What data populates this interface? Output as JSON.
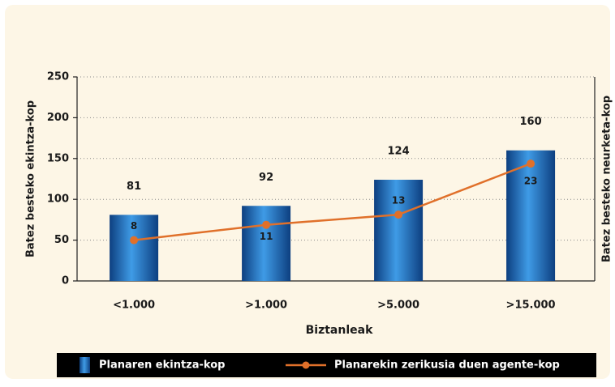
{
  "chart_data": {
    "type": "bar_line",
    "x_label": "Biztanleak",
    "y_label": "Batez besteko ekintza-kop",
    "y2_label": "Batez besteko neurketa-kop",
    "categories": [
      "<1.000",
      ">1.000",
      ">5.000",
      ">15.000"
    ],
    "series": [
      {
        "name": "Planaren ekintza-kop",
        "color": "#1f6fc0",
        "values": [
          81,
          92,
          124,
          160
        ]
      },
      {
        "name": "Planarekin zerikusia duen agente-kop",
        "color": "#e0702a",
        "values": [
          8,
          11,
          13,
          23
        ],
        "axis": "y2"
      }
    ],
    "ylim": [
      0,
      250
    ],
    "yticks": [
      0,
      50,
      100,
      150,
      200,
      250
    ],
    "y2lim": [
      0,
      40
    ],
    "grid": true
  }
}
